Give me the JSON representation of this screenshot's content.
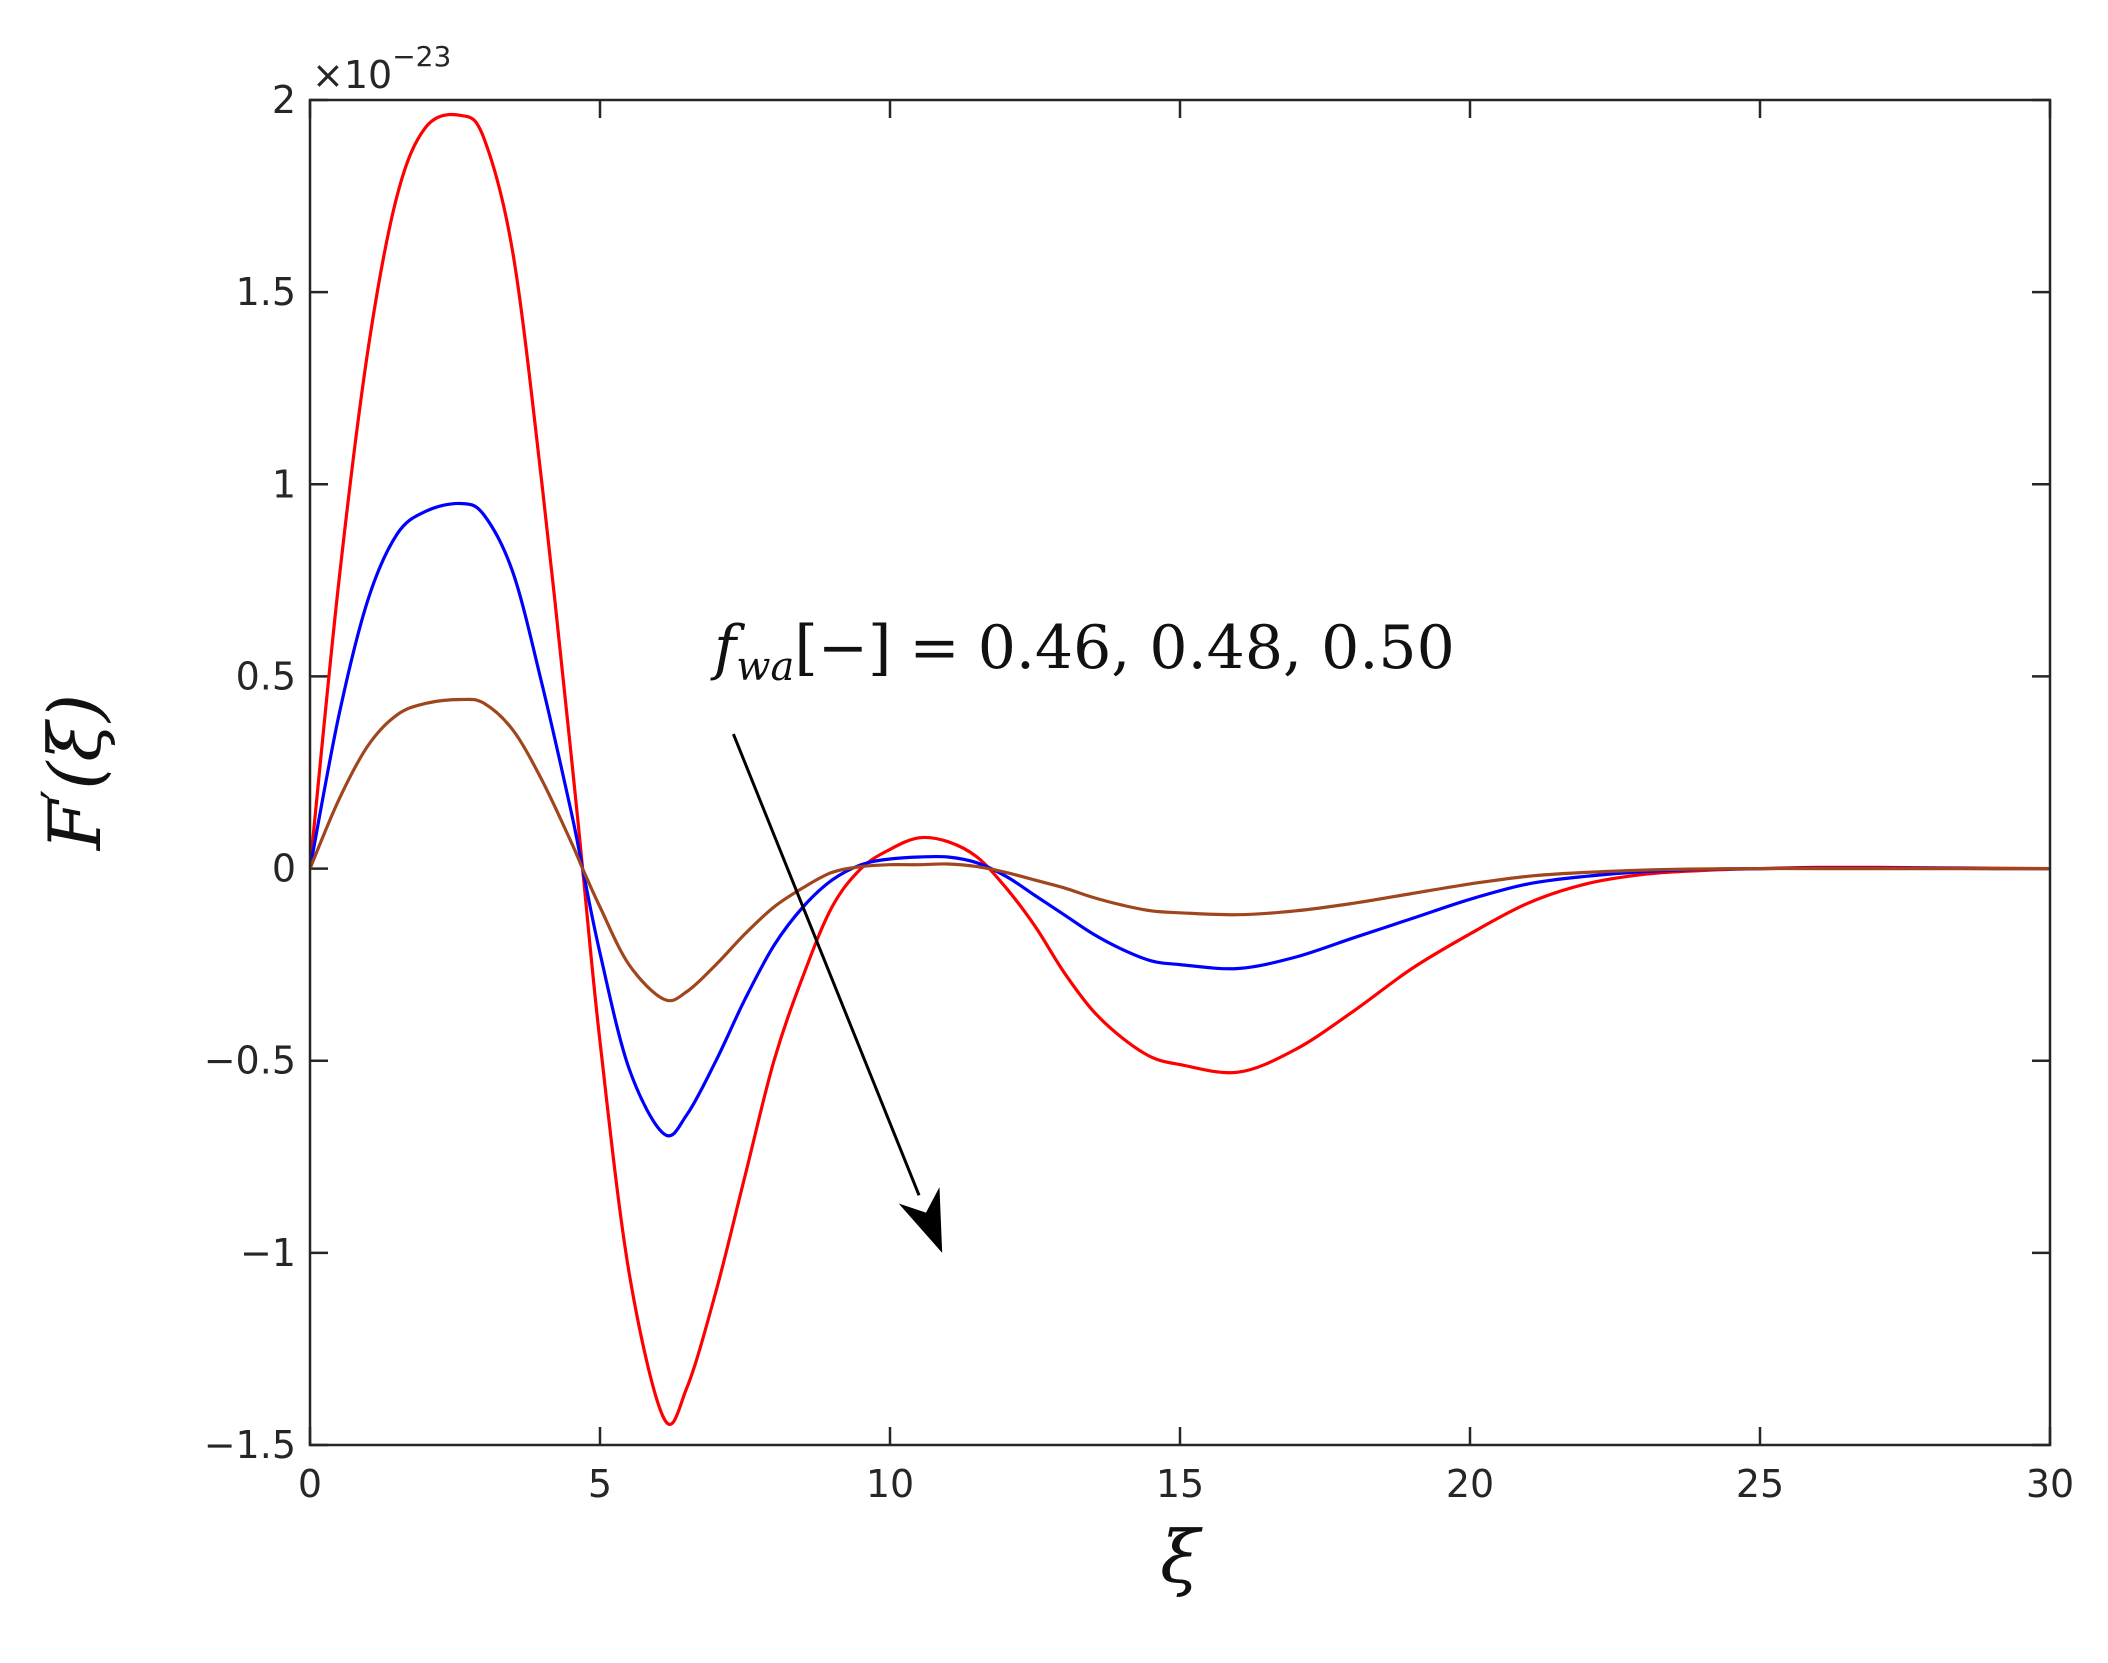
{
  "chart_data": {
    "type": "line",
    "xlabel": "ξ",
    "ylabel_main": "F",
    "ylabel_prime": "′",
    "ylabel_arg": "(ξ)",
    "y_exponent_prefix": "×10",
    "y_exponent_power": "−23",
    "xlim": [
      0,
      30
    ],
    "ylim": [
      -1.5,
      2
    ],
    "xticks": [
      0,
      5,
      10,
      15,
      20,
      25,
      30
    ],
    "yticks": [
      -1.5,
      -1,
      -0.5,
      0,
      0.5,
      1,
      1.5,
      2
    ],
    "xtick_labels": [
      "0",
      "5",
      "10",
      "15",
      "20",
      "25",
      "30"
    ],
    "ytick_labels": [
      "−1.5",
      "−1",
      "−0.5",
      "0",
      "0.5",
      "1",
      "1.5",
      "2"
    ],
    "grid": false,
    "series": [
      {
        "color": "#ff0000",
        "x": [
          0,
          0.5,
          1,
          1.5,
          2,
          2.6,
          3,
          3.5,
          4,
          4.5,
          4.7,
          5,
          5.5,
          6.1,
          6.5,
          7,
          7.5,
          8,
          8.5,
          9,
          9.5,
          10,
          10.5,
          11,
          11.5,
          12,
          12.5,
          13,
          13.5,
          14,
          14.5,
          15,
          16,
          17,
          18,
          19,
          20,
          21,
          22,
          23,
          24,
          25,
          26,
          27,
          28,
          29,
          30
        ],
        "y": [
          0,
          0.75,
          1.35,
          1.75,
          1.93,
          1.96,
          1.9,
          1.6,
          1.0,
          0.3,
          0,
          -0.45,
          -1.05,
          -1.43,
          -1.35,
          -1.1,
          -0.8,
          -0.5,
          -0.28,
          -0.1,
          0.0,
          0.05,
          0.08,
          0.07,
          0.03,
          -0.05,
          -0.15,
          -0.27,
          -0.37,
          -0.44,
          -0.49,
          -0.51,
          -0.53,
          -0.47,
          -0.37,
          -0.26,
          -0.17,
          -0.09,
          -0.04,
          -0.015,
          -0.005,
          0,
          0.003,
          0.003,
          0.002,
          0.001,
          0
        ]
      },
      {
        "color": "#0000ff",
        "x": [
          0,
          0.5,
          1,
          1.5,
          2,
          2.6,
          3,
          3.5,
          4,
          4.5,
          4.7,
          5,
          5.5,
          6.1,
          6.5,
          7,
          7.5,
          8,
          8.5,
          9,
          9.5,
          10,
          10.5,
          11,
          11.5,
          12,
          12.5,
          13,
          13.5,
          14,
          14.5,
          15,
          16,
          17,
          18,
          19,
          20,
          21,
          22,
          23,
          24,
          25,
          26,
          27,
          28,
          29,
          30
        ],
        "y": [
          0,
          0.4,
          0.7,
          0.87,
          0.93,
          0.95,
          0.92,
          0.77,
          0.48,
          0.15,
          0,
          -0.22,
          -0.52,
          -0.69,
          -0.64,
          -0.5,
          -0.34,
          -0.2,
          -0.1,
          -0.03,
          0.01,
          0.025,
          0.03,
          0.03,
          0.015,
          -0.02,
          -0.07,
          -0.12,
          -0.17,
          -0.21,
          -0.24,
          -0.25,
          -0.26,
          -0.23,
          -0.18,
          -0.13,
          -0.08,
          -0.04,
          -0.02,
          -0.008,
          -0.002,
          0,
          0.001,
          0.001,
          0.001,
          0,
          0
        ]
      },
      {
        "color": "#a0461e",
        "x": [
          0,
          0.5,
          1,
          1.5,
          2,
          2.6,
          3,
          3.5,
          4,
          4.5,
          4.7,
          5,
          5.5,
          6.1,
          6.5,
          7,
          7.5,
          8,
          8.5,
          9,
          9.5,
          10,
          10.5,
          11,
          11.5,
          12,
          12.5,
          13,
          13.5,
          14,
          14.5,
          15,
          16,
          17,
          18,
          19,
          20,
          21,
          22,
          23,
          24,
          25,
          26,
          27,
          28,
          29,
          30
        ],
        "y": [
          0,
          0.18,
          0.32,
          0.4,
          0.43,
          0.44,
          0.43,
          0.36,
          0.23,
          0.07,
          0,
          -0.1,
          -0.25,
          -0.34,
          -0.32,
          -0.25,
          -0.17,
          -0.1,
          -0.05,
          -0.01,
          0.005,
          0.01,
          0.01,
          0.012,
          0.005,
          -0.01,
          -0.03,
          -0.05,
          -0.075,
          -0.095,
          -0.11,
          -0.115,
          -0.12,
          -0.11,
          -0.09,
          -0.065,
          -0.04,
          -0.02,
          -0.01,
          -0.004,
          -0.001,
          0,
          0,
          0,
          0,
          0,
          0
        ]
      }
    ],
    "annotation": {
      "f_symbol": "f",
      "subscript": "wa",
      "bracket_text": "[−]",
      "equals": "=",
      "values": "0.46, 0.48, 0.50",
      "arrow_from": [
        7.3,
        0.35
      ],
      "arrow_to": [
        10.9,
        -1.0
      ]
    }
  }
}
